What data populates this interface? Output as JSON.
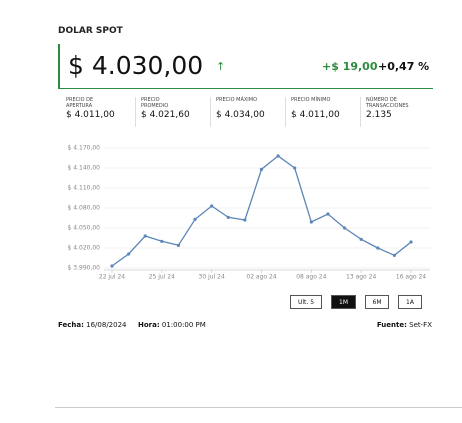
{
  "header": {
    "title": "DOLAR SPOT"
  },
  "quote": {
    "price": "$ 4.030,00",
    "arrow": "↑",
    "change": "+$ 19,00",
    "change_pct": "+0,47 %"
  },
  "stats": [
    {
      "label": "PRECIO DE\nAPERTURA",
      "value": "$ 4.011,00"
    },
    {
      "label": "PRECIO\nPROMEDIO",
      "value": "$ 4.021,60"
    },
    {
      "label": "PRECIO MÁXIMO",
      "value": "$ 4.034,00"
    },
    {
      "label": "PRECIO MÍNIMO",
      "value": "$ 4.011,00"
    },
    {
      "label": "NÚMERO DE\nTRANSACCIONES",
      "value": "2.135"
    }
  ],
  "chart_data": {
    "type": "line",
    "color": "#5b86b8",
    "grid": true,
    "categories": [
      "22 jul 24",
      null,
      null,
      "25 jul 24",
      null,
      null,
      "30 jul 24",
      null,
      null,
      "02 ago 24",
      null,
      null,
      "08 ago 24",
      null,
      null,
      "13 ago 24",
      null,
      null,
      "16 ago 24"
    ],
    "values": [
      3993,
      4011,
      4038,
      4030,
      4024,
      4063,
      4083,
      4066,
      4062,
      4138,
      4158,
      4140,
      4059,
      4071,
      4050,
      4033,
      4020,
      4009,
      4029
    ],
    "ylim": [
      3990,
      4170
    ],
    "yticks": [
      {
        "value": 3990,
        "label": "$ 3.990,00"
      },
      {
        "value": 4020,
        "label": "$ 4.020,00"
      },
      {
        "value": 4050,
        "label": "$ 4.050,00"
      },
      {
        "value": 4080,
        "label": "$ 4.080,00"
      },
      {
        "value": 4110,
        "label": "$ 4.110,00"
      },
      {
        "value": 4140,
        "label": "$ 4.140,00"
      },
      {
        "value": 4170,
        "label": "$ 4.170,00"
      }
    ]
  },
  "buttons": {
    "items": [
      "Ult. 5",
      "1M",
      "6M",
      "1A"
    ],
    "selected": 1
  },
  "footer": {
    "date_label": "Fecha:",
    "date": "16/08/2024",
    "time_label": "Hora:",
    "time": "01:00:00 PM",
    "source_label": "Fuente:",
    "source": "Set-FX"
  }
}
